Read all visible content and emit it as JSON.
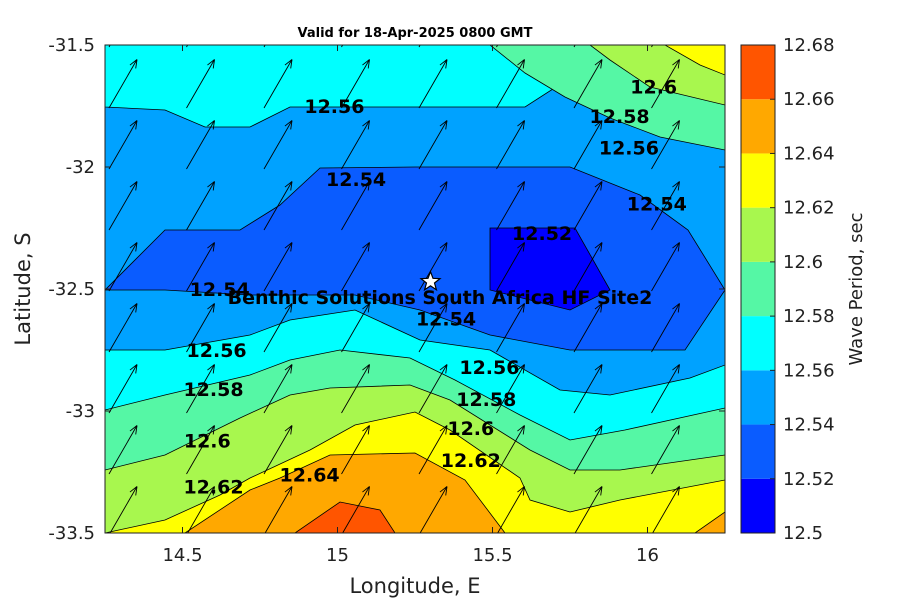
{
  "chart_data": {
    "type": "contour",
    "title": "Valid for 18-Apr-2025 0800 GMT",
    "xlabel": "Longitude, E",
    "ylabel": "Latitude, S",
    "xlim": [
      14.25,
      16.25
    ],
    "ylim": [
      -33.5,
      -31.5
    ],
    "xticks": [
      "14.5",
      "15",
      "15.5",
      "16"
    ],
    "yticks": [
      "-31.5",
      "-32",
      "-32.5",
      "-33",
      "-33.5"
    ],
    "colorbar": {
      "label": "Wave Period, sec",
      "ticks": [
        "12.68",
        "12.66",
        "12.64",
        "12.62",
        "12.6",
        "12.58",
        "12.56",
        "12.54",
        "12.52",
        "12.5"
      ],
      "levels": [
        12.5,
        12.52,
        12.54,
        12.56,
        12.58,
        12.6,
        12.62,
        12.64,
        12.66,
        12.68
      ],
      "colors": [
        "#0000ff",
        "#0a5cff",
        "#00a2ff",
        "#00ffff",
        "#55f7a5",
        "#a8f74e",
        "#ffff00",
        "#ffa800",
        "#ff5500"
      ]
    },
    "contour_labels": [
      {
        "text": "12.56",
        "lon": 14.99,
        "lat": -31.75
      },
      {
        "text": "12.54",
        "lon": 15.06,
        "lat": -32.05
      },
      {
        "text": "12.52",
        "lon": 15.66,
        "lat": -32.27
      },
      {
        "text": "12.6",
        "lon": 16.02,
        "lat": -31.67
      },
      {
        "text": "12.58",
        "lon": 15.91,
        "lat": -31.79
      },
      {
        "text": "12.56",
        "lon": 15.94,
        "lat": -31.92
      },
      {
        "text": "12.54",
        "lon": 16.03,
        "lat": -32.15
      },
      {
        "text": "12.54",
        "lon": 14.62,
        "lat": -32.5
      },
      {
        "text": "12.54",
        "lon": 15.35,
        "lat": -32.62
      },
      {
        "text": "12.56",
        "lon": 14.61,
        "lat": -32.75
      },
      {
        "text": "12.56",
        "lon": 15.49,
        "lat": -32.82
      },
      {
        "text": "12.58",
        "lon": 14.6,
        "lat": -32.91
      },
      {
        "text": "12.58",
        "lon": 15.48,
        "lat": -32.95
      },
      {
        "text": "12.6",
        "lon": 14.58,
        "lat": -33.12
      },
      {
        "text": "12.6",
        "lon": 15.43,
        "lat": -33.07
      },
      {
        "text": "12.62",
        "lon": 14.6,
        "lat": -33.31
      },
      {
        "text": "12.62",
        "lon": 15.43,
        "lat": -33.2
      },
      {
        "text": "12.64",
        "lon": 14.91,
        "lat": -33.26
      }
    ],
    "site": {
      "name": "Benthic Solutions South Africa HF Site2",
      "lon": 15.3,
      "lat": -32.47
    },
    "arrows": {
      "direction_deg": 30,
      "lon_spacing": 0.25,
      "lat_spacing": 0.25
    }
  }
}
